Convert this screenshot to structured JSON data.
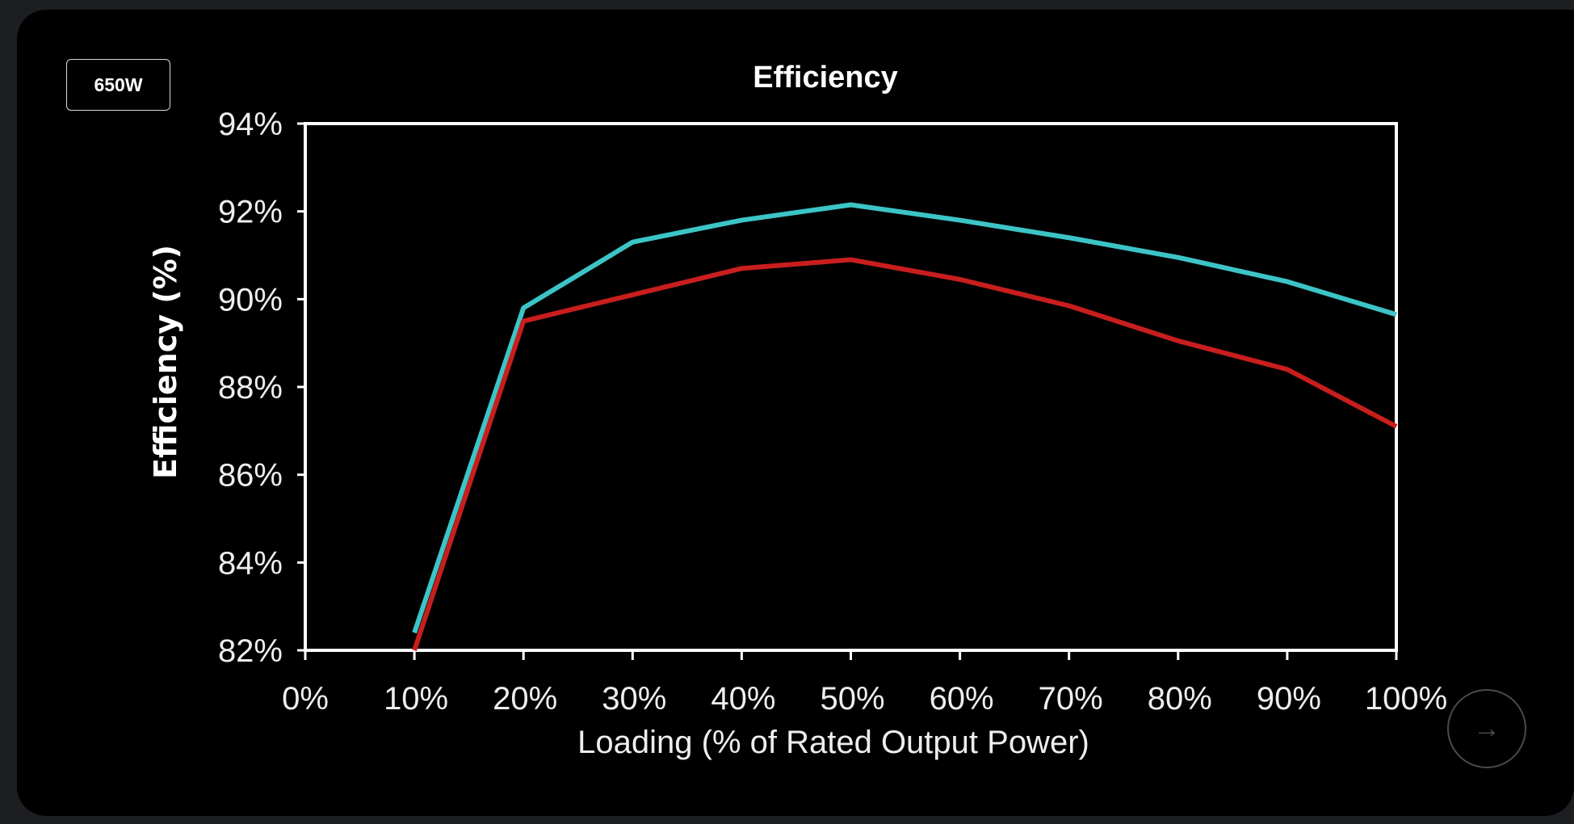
{
  "badge": {
    "label": "650W"
  },
  "next_button": {
    "icon": "arrow-right-icon"
  },
  "chart_data": {
    "type": "line",
    "title": "Efficiency",
    "xlabel": "Loading (% of Rated Output  Power)",
    "ylabel": "Efficiency (%)",
    "x_ticks": [
      "0%",
      "10%",
      "20%",
      "30%",
      "40%",
      "50%",
      "60%",
      "70%",
      "80%",
      "90%",
      "100%"
    ],
    "y_ticks": [
      "94%",
      "92%",
      "90%",
      "88%",
      "86%",
      "84%",
      "82%"
    ],
    "xlim": [
      0,
      100
    ],
    "ylim": [
      82,
      94
    ],
    "grid": false,
    "x": [
      10,
      20,
      30,
      40,
      50,
      60,
      70,
      80,
      90,
      100
    ],
    "series": [
      {
        "color": "#3cc4c6",
        "values": [
          82.4,
          89.8,
          91.3,
          91.8,
          92.15,
          91.8,
          91.4,
          90.95,
          90.4,
          89.65
        ]
      },
      {
        "color": "#c81e1e",
        "values": [
          81.9,
          89.5,
          90.1,
          90.7,
          90.9,
          90.45,
          89.85,
          89.05,
          88.4,
          87.1
        ]
      }
    ]
  }
}
